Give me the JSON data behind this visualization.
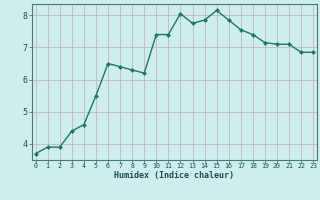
{
  "x": [
    0,
    1,
    2,
    3,
    4,
    5,
    6,
    7,
    8,
    9,
    10,
    11,
    12,
    13,
    14,
    15,
    16,
    17,
    18,
    19,
    20,
    21,
    22,
    23
  ],
  "y": [
    3.7,
    3.9,
    3.9,
    4.4,
    4.6,
    5.5,
    6.5,
    6.4,
    6.3,
    6.2,
    7.4,
    7.4,
    8.05,
    7.75,
    7.85,
    8.15,
    7.85,
    7.55,
    7.4,
    7.15,
    7.1,
    7.1,
    6.85,
    6.85
  ],
  "line_color": "#1a7a6a",
  "marker_color": "#1a7a6a",
  "bg_color": "#ceeeed",
  "grid_color": "#c8b8b8",
  "xlabel": "Humidex (Indice chaleur)",
  "xlabel_color": "#1a5050",
  "tick_color": "#1a5050",
  "ylim": [
    3.5,
    8.35
  ],
  "yticks": [
    4,
    5,
    6,
    7,
    8
  ],
  "xticks": [
    0,
    1,
    2,
    3,
    4,
    5,
    6,
    7,
    8,
    9,
    10,
    11,
    12,
    13,
    14,
    15,
    16,
    17,
    18,
    19,
    20,
    21,
    22,
    23
  ],
  "spine_color": "#4a7a7a",
  "xlim": [
    -0.3,
    23.3
  ]
}
